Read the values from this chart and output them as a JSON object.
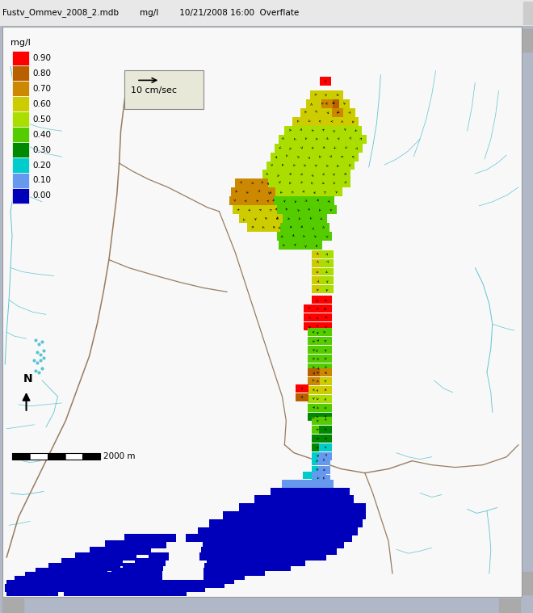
{
  "title_text": "Fustv_Ommev_2008_2.mdb        mg/l        10/21/2008 16:00  Overflate",
  "title_bg": "#e8e8e8",
  "map_bg": "#ffffff",
  "colorbar_labels": [
    "0.90",
    "0.80",
    "0.70",
    "0.60",
    "0.50",
    "0.40",
    "0.30",
    "0.20",
    "0.10",
    "0.00"
  ],
  "colorbar_colors": [
    "#ff0000",
    "#b86000",
    "#cc8800",
    "#cccc00",
    "#aadd00",
    "#55cc00",
    "#008800",
    "#00cccc",
    "#6699ee",
    "#0000bb"
  ],
  "velocity_label": "10 cm/sec",
  "scale_label": "2000 m",
  "figsize": [
    6.6,
    7.59
  ],
  "dpi": 100,
  "river_brown": "#886644",
  "river_cyan": "#44bbcc",
  "bg_white": "#f8f8f8"
}
